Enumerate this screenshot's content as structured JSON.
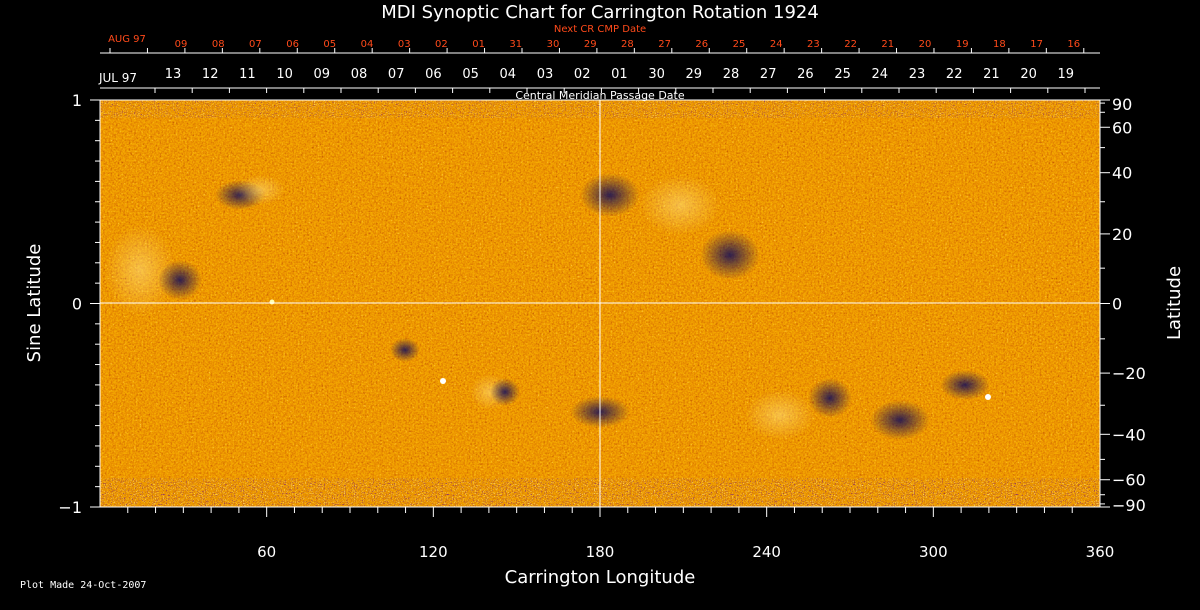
{
  "chart_data": {
    "type": "heatmap",
    "title": "MDI Synoptic Chart for Carrington Rotation 1924",
    "xlabel": "Carrington Longitude",
    "ylabel_left": "Sine Latitude",
    "ylabel_right": "Latitude",
    "xlim": [
      0,
      360
    ],
    "ylim": [
      -1,
      1
    ],
    "x_ticks": [
      60,
      120,
      180,
      240,
      300,
      360
    ],
    "y_ticks_left": [
      "1",
      "0",
      "−1"
    ],
    "y_ticks_right": [
      "90",
      "60",
      "40",
      "20",
      "0",
      "−20",
      "−40",
      "−60",
      "−90"
    ],
    "top_axis_next": {
      "label": "Next CR CMP Date",
      "month": "AUG 97",
      "dates": [
        "09",
        "08",
        "07",
        "06",
        "05",
        "04",
        "03",
        "02",
        "01",
        "31",
        "30",
        "29",
        "28",
        "27",
        "26",
        "25",
        "24",
        "23",
        "22",
        "21",
        "20",
        "19",
        "18",
        "17",
        "16"
      ],
      "color": "#ff4a1a"
    },
    "top_axis_current": {
      "label": "Central Meridian Passage Date",
      "month": "JUL 97",
      "dates": [
        "13",
        "12",
        "11",
        "10",
        "09",
        "08",
        "07",
        "06",
        "05",
        "04",
        "03",
        "02",
        "01",
        "30",
        "29",
        "28",
        "27",
        "26",
        "25",
        "24",
        "23",
        "22",
        "21",
        "20",
        "19"
      ]
    },
    "grid_lines": {
      "x": 180,
      "y": 0
    },
    "colormap": [
      "#00007a",
      "#8b0000",
      "#e03000",
      "#ff8800",
      "#ffff60",
      "#ffffff"
    ]
  },
  "footer": "Plot Made 24-Oct-2007"
}
